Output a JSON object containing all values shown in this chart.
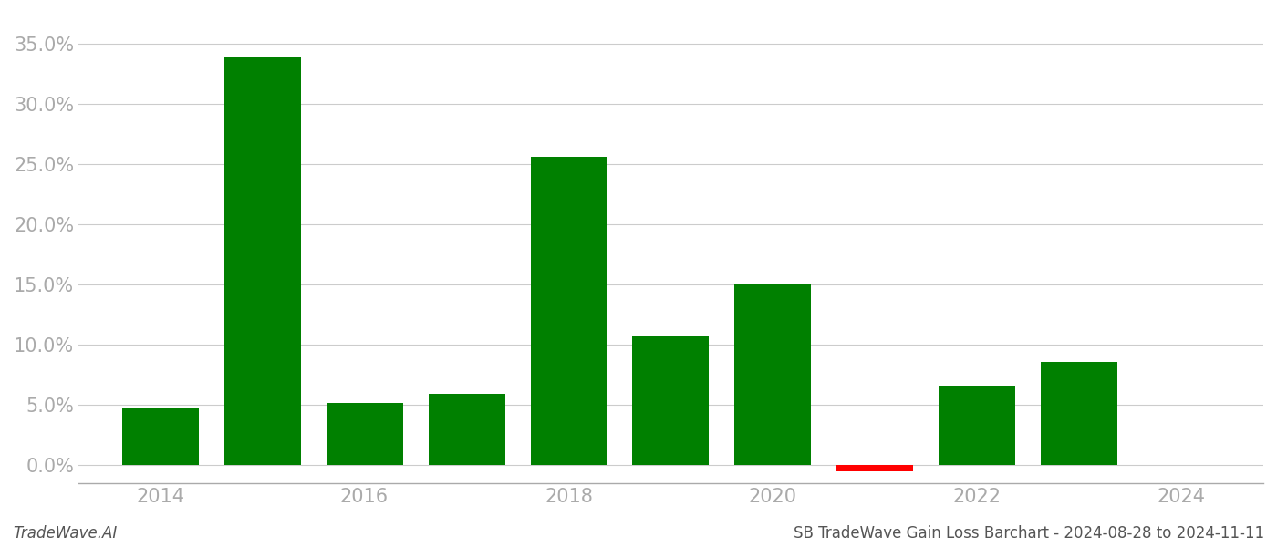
{
  "years": [
    2014,
    2015,
    2016,
    2017,
    2018,
    2019,
    2020,
    2021,
    2022,
    2023
  ],
  "values": [
    0.047,
    0.339,
    0.052,
    0.059,
    0.256,
    0.107,
    0.151,
    -0.005,
    0.066,
    0.086
  ],
  "bar_colors": [
    "#008000",
    "#008000",
    "#008000",
    "#008000",
    "#008000",
    "#008000",
    "#008000",
    "#ff0000",
    "#008000",
    "#008000"
  ],
  "footer_left": "TradeWave.AI",
  "footer_right": "SB TradeWave Gain Loss Barchart - 2024-08-28 to 2024-11-11",
  "ylim": [
    -0.015,
    0.375
  ],
  "yticks": [
    0.0,
    0.05,
    0.1,
    0.15,
    0.2,
    0.25,
    0.3,
    0.35
  ],
  "xlim": [
    2013.2,
    2024.8
  ],
  "xticks": [
    2014,
    2016,
    2018,
    2020,
    2022,
    2024
  ],
  "xtick_fontsize": 15,
  "ytick_fontsize": 15,
  "background_color": "#ffffff",
  "grid_color": "#cccccc",
  "bar_width": 0.75
}
